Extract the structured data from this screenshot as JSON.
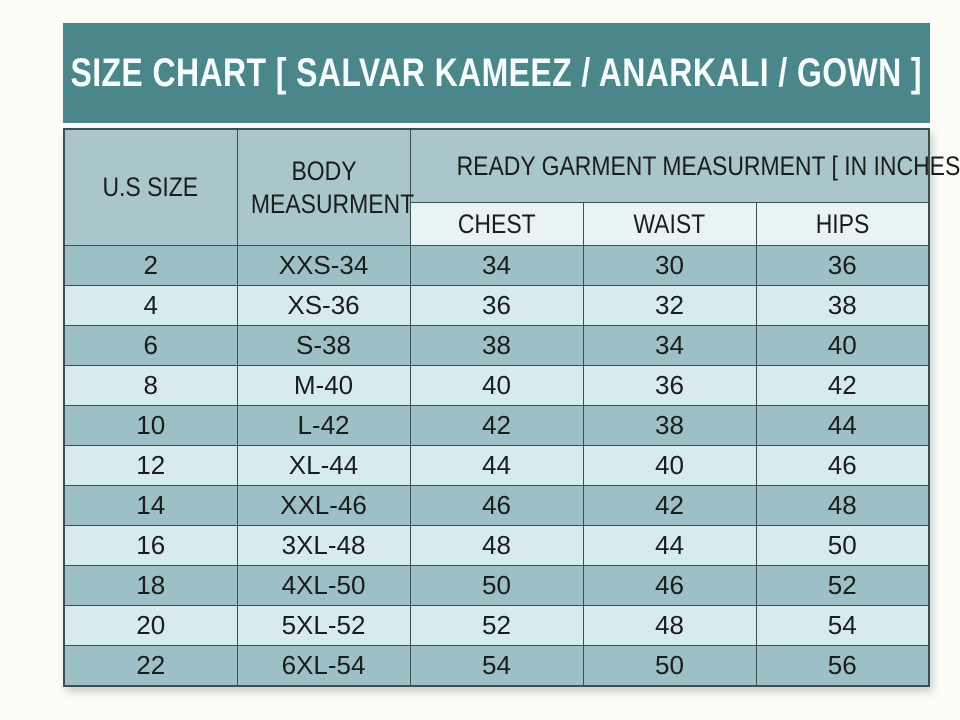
{
  "banner": {
    "title": "SIZE CHART [ SALVAR KAMEEZ / ANARKALI / GOWN ]"
  },
  "table": {
    "headers": {
      "us_size": "U.S SIZE",
      "body_measurement": "BODY MEASURMENT",
      "ready_garment": "READY GARMENT MEASURMENT [ IN INCHES ]",
      "sub": [
        "CHEST",
        "WAIST",
        "HIPS"
      ]
    }
  },
  "colors": {
    "banner_teal": "#4b868b",
    "row_dark": "#9cc0c5",
    "row_light": "#d7ebee",
    "header_fill": "#a9c6ca",
    "subheader_fill": "#e7f3f5",
    "border": "#3e4f52",
    "text_dark": "#1c1c1c",
    "banner_text": "#f6fbfb",
    "page_bg": "#fcfdf9"
  },
  "chart_data": {
    "type": "table",
    "title": "SIZE CHART [ SALVAR KAMEEZ / ANARKALI / GOWN ]",
    "columns": [
      "U.S SIZE",
      "BODY MEASURMENT",
      "CHEST",
      "WAIST",
      "HIPS"
    ],
    "column_group": {
      "label": "READY GARMENT MEASURMENT [ IN INCHES ]",
      "spans": [
        "CHEST",
        "WAIST",
        "HIPS"
      ]
    },
    "units": "inches",
    "rows": [
      [
        "2",
        "XXS-34",
        "34",
        "30",
        "36"
      ],
      [
        "4",
        "XS-36",
        "36",
        "32",
        "38"
      ],
      [
        "6",
        "S-38",
        "38",
        "34",
        "40"
      ],
      [
        "8",
        "M-40",
        "40",
        "36",
        "42"
      ],
      [
        "10",
        "L-42",
        "42",
        "38",
        "44"
      ],
      [
        "12",
        "XL-44",
        "44",
        "40",
        "46"
      ],
      [
        "14",
        "XXL-46",
        "46",
        "42",
        "48"
      ],
      [
        "16",
        "3XL-48",
        "48",
        "44",
        "50"
      ],
      [
        "18",
        "4XL-50",
        "50",
        "46",
        "52"
      ],
      [
        "20",
        "5XL-52",
        "52",
        "48",
        "54"
      ],
      [
        "22",
        "6XL-54",
        "54",
        "50",
        "56"
      ]
    ]
  }
}
